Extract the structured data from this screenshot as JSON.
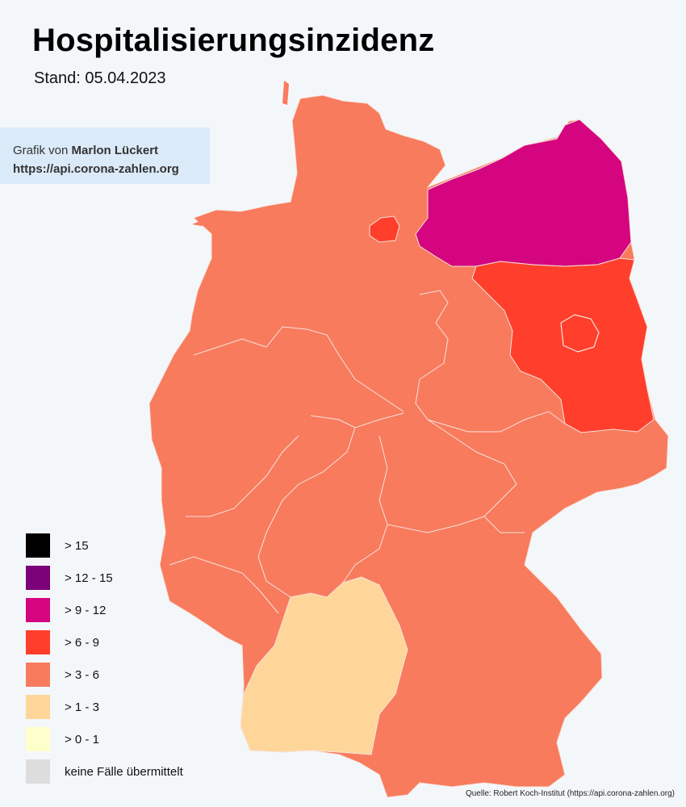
{
  "header": {
    "title": "Hospitalisierungsinzidenz",
    "subtitle": "Stand: 05.04.2023"
  },
  "credit": {
    "prefix": "Grafik von ",
    "author": "Marlon Lückert",
    "url": "https://api.corona-zahlen.org"
  },
  "legend": {
    "items": [
      {
        "label": "> 15",
        "color": "#000000"
      },
      {
        "label": "> 12 - 15",
        "color": "#7a0177"
      },
      {
        "label": "> 9 - 12",
        "color": "#d4057f"
      },
      {
        "label": "> 6 - 9",
        "color": "#ff3f2b"
      },
      {
        "label": "> 3 - 6",
        "color": "#f87b5d"
      },
      {
        "label": "> 1 - 3",
        "color": "#fed699"
      },
      {
        "label": "> 0 - 1",
        "color": "#ffffcc"
      },
      {
        "label": "keine Fälle übermittelt",
        "color": "#dddddd"
      }
    ]
  },
  "regions": {
    "mecklenburg_vorpommern": {
      "category": "> 9 - 12",
      "color": "#d4057f"
    },
    "brandenburg": {
      "category": "> 6 - 9",
      "color": "#ff3f2b"
    },
    "hamburg": {
      "category": "> 6 - 9",
      "color": "#ff3f2b"
    },
    "berlin": {
      "category": "> 6 - 9",
      "color": "#ff3f2b"
    },
    "baden_wuerttemberg": {
      "category": "> 1 - 3",
      "color": "#fed699"
    },
    "other_states": {
      "category": "> 3 - 6",
      "color": "#f87b5d"
    }
  },
  "source": "Quelle: Robert Koch-Institut (https://api.corona-zahlen.org)"
}
